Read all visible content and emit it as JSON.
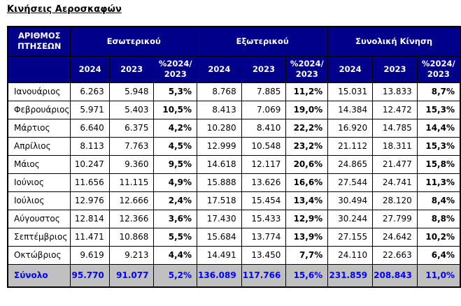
{
  "page": {
    "title": "Κινήσεις Αεροσκαφών"
  },
  "colors": {
    "page_bg": "#FFFFFF",
    "header_bg": "#00008B",
    "header_text": "#FFFFFF",
    "body_text": "#000000",
    "border": "#000000",
    "total_bg": "#C0C0C0",
    "total_text": "#0000FF"
  },
  "table": {
    "corner_header": "ΑΡΙΘΜΟΣ ΠΤΗΣΕΩΝ",
    "groups": [
      "Εσωτερικού",
      "Εξωτερικού",
      "Συνολική Κίνηση"
    ],
    "sub_headers": [
      "2024",
      "2023",
      "%2024/ 2023",
      "2024",
      "2023",
      "%2024/ 2023",
      "2024",
      "2023",
      "%2024/ 2023"
    ],
    "rows": [
      [
        "Ιανουάριος",
        "6.263",
        "5.948",
        "5,3%",
        "8.768",
        "7.885",
        "11,2%",
        "15.031",
        "13.833",
        "8,7%"
      ],
      [
        "Φεβρουάριος",
        "5.971",
        "5.403",
        "10,5%",
        "8.413",
        "7.069",
        "19,0%",
        "14.384",
        "12.472",
        "15,3%"
      ],
      [
        "Μάρτιος",
        "6.640",
        "6.375",
        "4,2%",
        "10.280",
        "8.410",
        "22,2%",
        "16.920",
        "14.785",
        "14,4%"
      ],
      [
        "Απρίλιος",
        "8.113",
        "7.763",
        "4,5%",
        "12.999",
        "10.548",
        "23,2%",
        "21.112",
        "18.311",
        "15,3%"
      ],
      [
        "Μάιος",
        "10.247",
        "9.360",
        "9,5%",
        "14.618",
        "12.117",
        "20,6%",
        "24.865",
        "21.477",
        "15,8%"
      ],
      [
        "Ιούνιος",
        "11.656",
        "11.115",
        "4,9%",
        "15.888",
        "13.626",
        "16,6%",
        "27.544",
        "24.741",
        "11,3%"
      ],
      [
        "Ιούλιος",
        "12.976",
        "12.666",
        "2,4%",
        "17.518",
        "15.454",
        "13,4%",
        "30.494",
        "28.120",
        "8,4%"
      ],
      [
        "Αύγουστος",
        "12.814",
        "12.366",
        "3,6%",
        "17.430",
        "15.433",
        "12,9%",
        "30.244",
        "27.799",
        "8,8%"
      ],
      [
        "Σεπτέμβριος",
        "11.471",
        "10.868",
        "5,5%",
        "15.684",
        "13.774",
        "13,9%",
        "27.155",
        "24.642",
        "10,2%"
      ],
      [
        "Οκτώβριος",
        "9.619",
        "9.213",
        "4,4%",
        "14.491",
        "13.450",
        "7,7%",
        "24.110",
        "22.663",
        "6,4%"
      ]
    ],
    "total_row": [
      "Σύνολο",
      "95.770",
      "91.077",
      "5,2%",
      "136.089",
      "117.766",
      "15,6%",
      "231.859",
      "208.843",
      "11,0%"
    ]
  }
}
